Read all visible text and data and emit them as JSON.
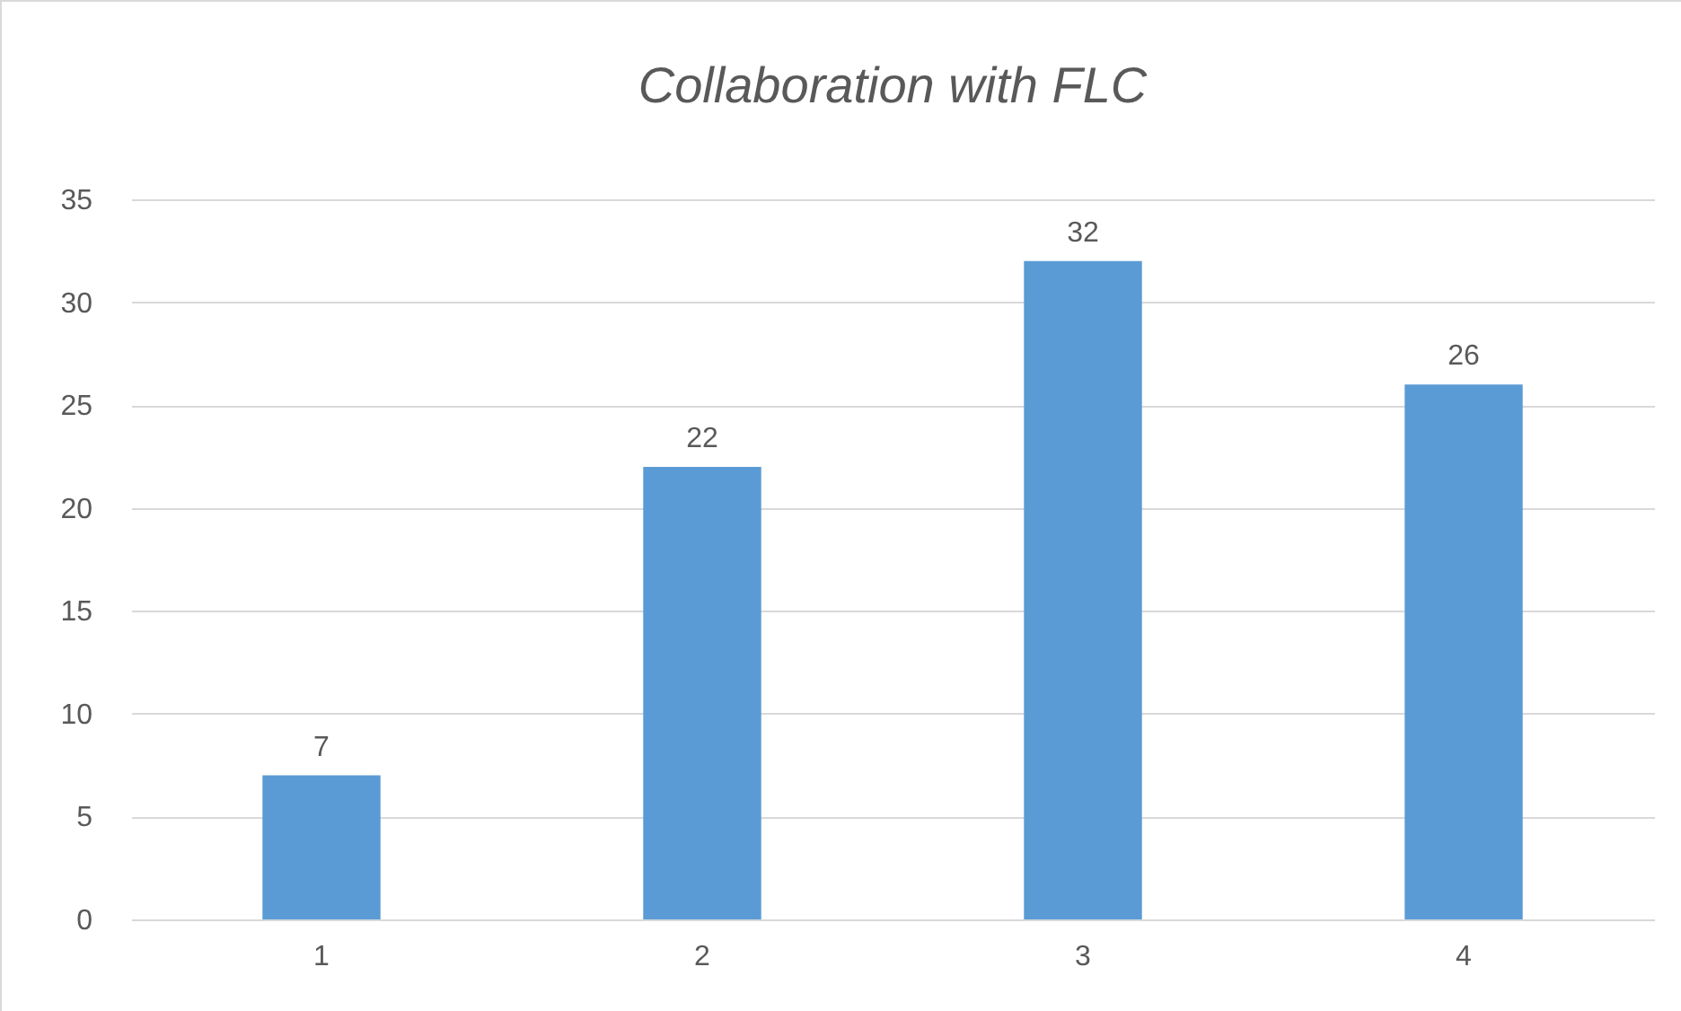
{
  "chart_data": {
    "type": "bar",
    "title": "Collaboration with FLC",
    "categories": [
      "1",
      "2",
      "3",
      "4"
    ],
    "values": [
      7,
      22,
      32,
      26
    ],
    "color": "#5b9bd5",
    "ylim": [
      0,
      35
    ],
    "yticks": [
      0,
      5,
      10,
      15,
      20,
      25,
      30,
      35
    ],
    "grid": "y",
    "data_labels": true
  }
}
